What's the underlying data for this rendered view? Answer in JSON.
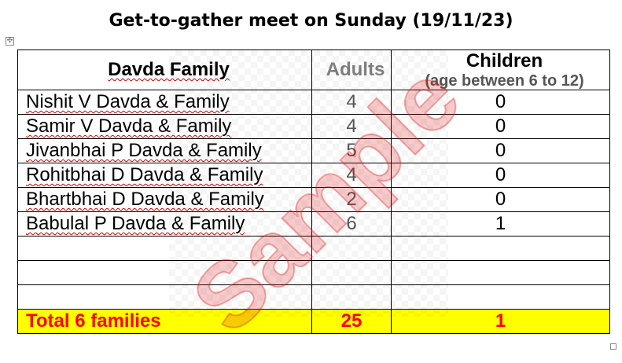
{
  "document": {
    "title": "Get-to-gather meet on Sunday (19/11/23)"
  },
  "handles": {
    "move_glyph": "✣"
  },
  "table": {
    "headers": {
      "family": "Davda Family",
      "adults": "Adults",
      "children": "Children",
      "children_note": "(age between 6 to 12)"
    },
    "rows": [
      {
        "name": "Nishit V Davda & Family",
        "adults": "4",
        "children": "0"
      },
      {
        "name": "Samir V Davda & Family",
        "adults": "4",
        "children": "0"
      },
      {
        "name": "Jivanbhai P Davda & Family",
        "adults": "5",
        "children": "0"
      },
      {
        "name": "Rohitbhai D Davda & Family",
        "adults": "4",
        "children": "0"
      },
      {
        "name": "Bhartbhai D Davda & Family",
        "adults": "2",
        "children": "0"
      },
      {
        "name": "Babulal P Davda & Family",
        "adults": "6",
        "children": "1"
      },
      {
        "name": "",
        "adults": "",
        "children": ""
      },
      {
        "name": "",
        "adults": "",
        "children": ""
      },
      {
        "name": "",
        "adults": "",
        "children": ""
      }
    ],
    "total": {
      "label": "Total 6 families",
      "adults": "25",
      "children": "1"
    }
  },
  "watermark": {
    "text": "Sample"
  },
  "colors": {
    "total_row_bg": "#ffff00",
    "total_row_text": "#ff0000",
    "adults_text": "#808080",
    "spellcheck_underline": "#d40000"
  }
}
